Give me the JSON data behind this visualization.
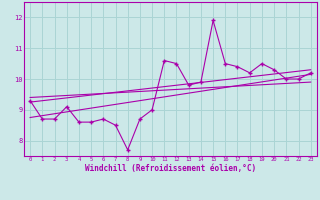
{
  "title": "",
  "xlabel": "Windchill (Refroidissement éolien,°C)",
  "ylabel": "",
  "bg_color": "#cce8e8",
  "grid_color": "#aad4d4",
  "line_color": "#aa00aa",
  "spine_color": "#aa00aa",
  "xlim": [
    -0.5,
    23.5
  ],
  "ylim": [
    7.5,
    12.5
  ],
  "yticks": [
    8,
    9,
    10,
    11,
    12
  ],
  "xticks": [
    0,
    1,
    2,
    3,
    4,
    5,
    6,
    7,
    8,
    9,
    10,
    11,
    12,
    13,
    14,
    15,
    16,
    17,
    18,
    19,
    20,
    21,
    22,
    23
  ],
  "main_x": [
    0,
    1,
    2,
    3,
    4,
    5,
    6,
    7,
    8,
    9,
    10,
    11,
    12,
    13,
    14,
    15,
    16,
    17,
    18,
    19,
    20,
    21,
    22,
    23
  ],
  "main_y": [
    9.3,
    8.7,
    8.7,
    9.1,
    8.6,
    8.6,
    8.7,
    8.5,
    7.7,
    8.7,
    9.0,
    10.6,
    10.5,
    9.8,
    9.9,
    11.9,
    10.5,
    10.4,
    10.2,
    10.5,
    10.3,
    10.0,
    10.0,
    10.2
  ],
  "trend1_x": [
    0,
    23
  ],
  "trend1_y": [
    9.25,
    10.3
  ],
  "trend2_x": [
    0,
    23
  ],
  "trend2_y": [
    9.4,
    9.9
  ],
  "trend3_x": [
    0,
    23
  ],
  "trend3_y": [
    8.75,
    10.15
  ]
}
